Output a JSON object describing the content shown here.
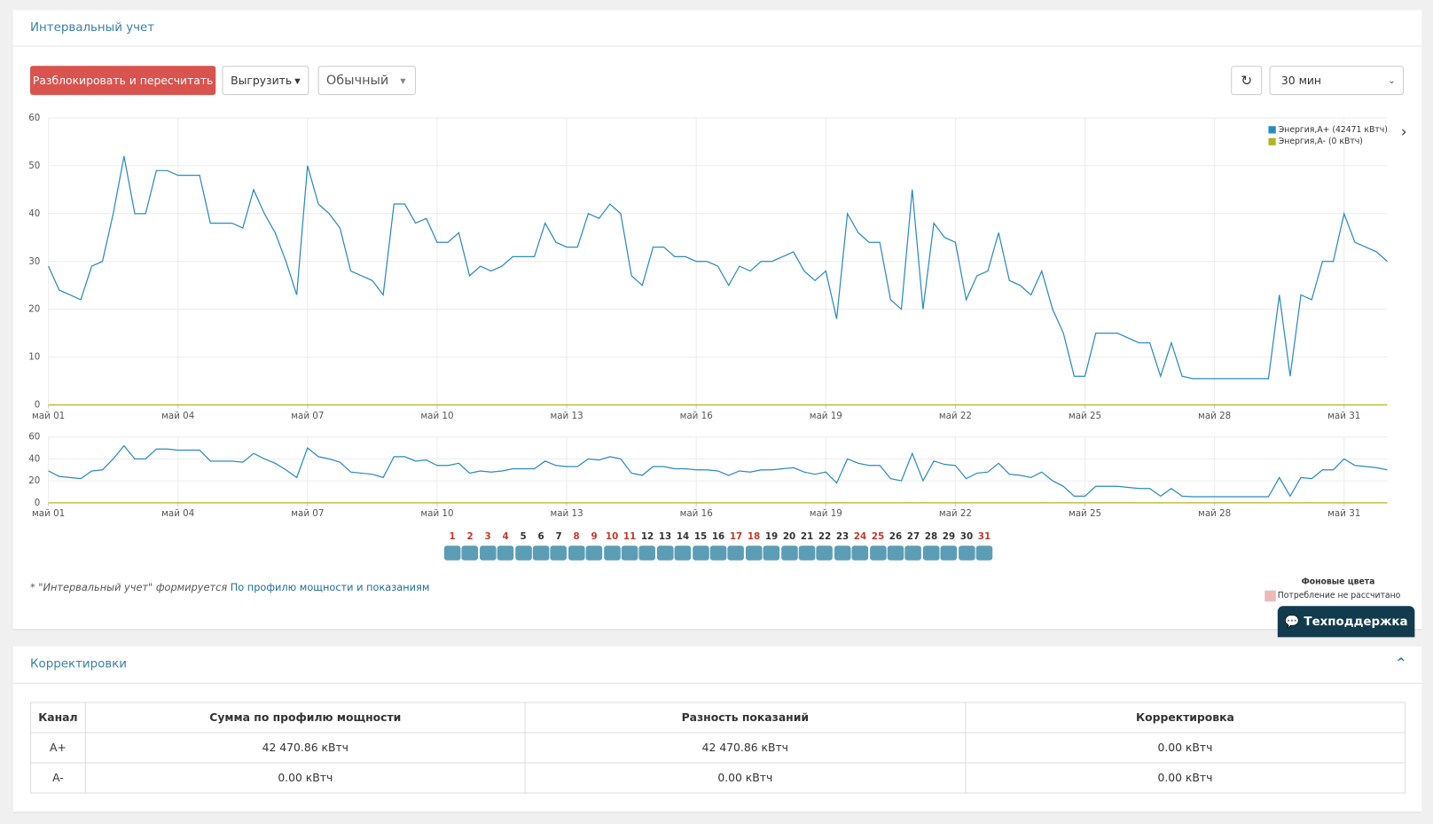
{
  "panel_title": "Интервальный учет",
  "toolbar": {
    "unlock": "Разблокировать и пересчитать",
    "export": "Выгрузить",
    "mode": "Обычный",
    "interval": "30 мин"
  },
  "chart_data": {
    "type": "line",
    "xlim": [
      1,
      32
    ],
    "xticks": [
      {
        "value": 1,
        "label": "май 01"
      },
      {
        "value": 4,
        "label": "май 04"
      },
      {
        "value": 7,
        "label": "май 07"
      },
      {
        "value": 10,
        "label": "май 10"
      },
      {
        "value": 13,
        "label": "май 13"
      },
      {
        "value": 16,
        "label": "май 16"
      },
      {
        "value": 19,
        "label": "май 19"
      },
      {
        "value": 22,
        "label": "май 22"
      },
      {
        "value": 25,
        "label": "май 25"
      },
      {
        "value": 28,
        "label": "май 28"
      },
      {
        "value": 31,
        "label": "май 31"
      }
    ],
    "ylim": [
      0,
      60
    ],
    "yticks": [
      0,
      10,
      20,
      30,
      40,
      50,
      60
    ],
    "grid": true,
    "legend": "top-right",
    "series": [
      {
        "name": "Энергия,А+ (42471 кВтч)",
        "color": "#2a8bbf",
        "x": [
          1,
          1.25,
          1.5,
          1.75,
          2,
          2.25,
          2.5,
          2.75,
          3,
          3.25,
          3.5,
          3.75,
          4,
          4.25,
          4.5,
          4.75,
          5,
          5.25,
          5.5,
          5.75,
          6,
          6.25,
          6.5,
          6.75,
          7,
          7.25,
          7.5,
          7.75,
          8,
          8.25,
          8.5,
          8.75,
          9,
          9.25,
          9.5,
          9.75,
          10,
          10.25,
          10.5,
          10.75,
          11,
          11.25,
          11.5,
          11.75,
          12,
          12.25,
          12.5,
          12.75,
          13,
          13.25,
          13.5,
          13.75,
          14,
          14.25,
          14.5,
          14.75,
          15,
          15.25,
          15.5,
          15.75,
          16,
          16.25,
          16.5,
          16.75,
          17,
          17.25,
          17.5,
          17.75,
          18,
          18.25,
          18.5,
          18.75,
          19,
          19.25,
          19.5,
          19.75,
          20,
          20.25,
          20.5,
          20.75,
          21,
          21.25,
          21.5,
          21.75,
          22,
          22.25,
          22.5,
          22.75,
          23,
          23.25,
          23.5,
          23.75,
          24,
          24.25,
          24.5,
          24.75,
          25,
          25.25,
          25.5,
          25.75,
          26,
          26.25,
          26.5,
          26.75,
          27,
          27.25,
          27.5,
          27.75,
          28,
          28.25,
          28.5,
          28.75,
          29,
          29.25,
          29.5,
          29.75,
          30,
          30.25,
          30.5,
          30.75,
          31,
          31.25,
          31.5,
          31.75,
          32
        ],
        "values": [
          29,
          24,
          23,
          22,
          29,
          30,
          40,
          52,
          40,
          40,
          49,
          49,
          48,
          48,
          48,
          38,
          38,
          38,
          37,
          45,
          40,
          36,
          30,
          23,
          50,
          42,
          40,
          37,
          28,
          27,
          26,
          23,
          42,
          42,
          38,
          39,
          34,
          34,
          36,
          27,
          29,
          28,
          29,
          31,
          31,
          31,
          38,
          34,
          33,
          33,
          40,
          39,
          42,
          40,
          27,
          25,
          33,
          33,
          31,
          31,
          30,
          30,
          29,
          25,
          29,
          28,
          30,
          30,
          31,
          32,
          28,
          26,
          28,
          18,
          40,
          36,
          34,
          34,
          22,
          20,
          45,
          20,
          38,
          35,
          34,
          22,
          27,
          28,
          36,
          26,
          25,
          23,
          28,
          20,
          15,
          6,
          6,
          15,
          15,
          15,
          14,
          13,
          13,
          6,
          13,
          6,
          5.5,
          5.5,
          5.5,
          5.5,
          5.5,
          5.5,
          5.5,
          5.5,
          23,
          6,
          23,
          22,
          30,
          30,
          40,
          34,
          33,
          32,
          30
        ]
      },
      {
        "name": "Энергия,А- (0 кВтч)",
        "color": "#b5b31f",
        "x": [
          1,
          32
        ],
        "values": [
          0,
          0
        ]
      }
    ],
    "navigator": {
      "ylim": [
        0,
        60
      ],
      "yticks": [
        0,
        20,
        40,
        60
      ]
    }
  },
  "day_selector": {
    "days": [
      1,
      2,
      3,
      4,
      5,
      6,
      7,
      8,
      9,
      10,
      11,
      12,
      13,
      14,
      15,
      16,
      17,
      18,
      19,
      20,
      21,
      22,
      23,
      24,
      25,
      26,
      27,
      28,
      29,
      30,
      31
    ],
    "holidays": [
      true,
      true,
      true,
      true,
      false,
      false,
      false,
      true,
      true,
      true,
      true,
      false,
      false,
      false,
      false,
      false,
      true,
      true,
      false,
      false,
      false,
      false,
      false,
      true,
      true,
      false,
      false,
      false,
      false,
      false,
      true
    ]
  },
  "footnote": {
    "text": "* \"Интервальный учет\" формируется",
    "link": "По профилю мощности и показаниям"
  },
  "background_legend": {
    "title": "Фоновые цвета",
    "item": "Потребление не рассчитано"
  },
  "support_button": "Техподдержка",
  "corrections": {
    "title": "Корректировки",
    "columns": [
      "Канал",
      "Сумма по профилю мощности",
      "Разность показаний",
      "Корректировка"
    ],
    "rows": [
      [
        "A+",
        "42 470.86 кВтч",
        "42 470.86 кВтч",
        "0.00 кВтч"
      ],
      [
        "A-",
        "0.00 кВтч",
        "0.00 кВтч",
        "0.00 кВтч"
      ]
    ]
  }
}
